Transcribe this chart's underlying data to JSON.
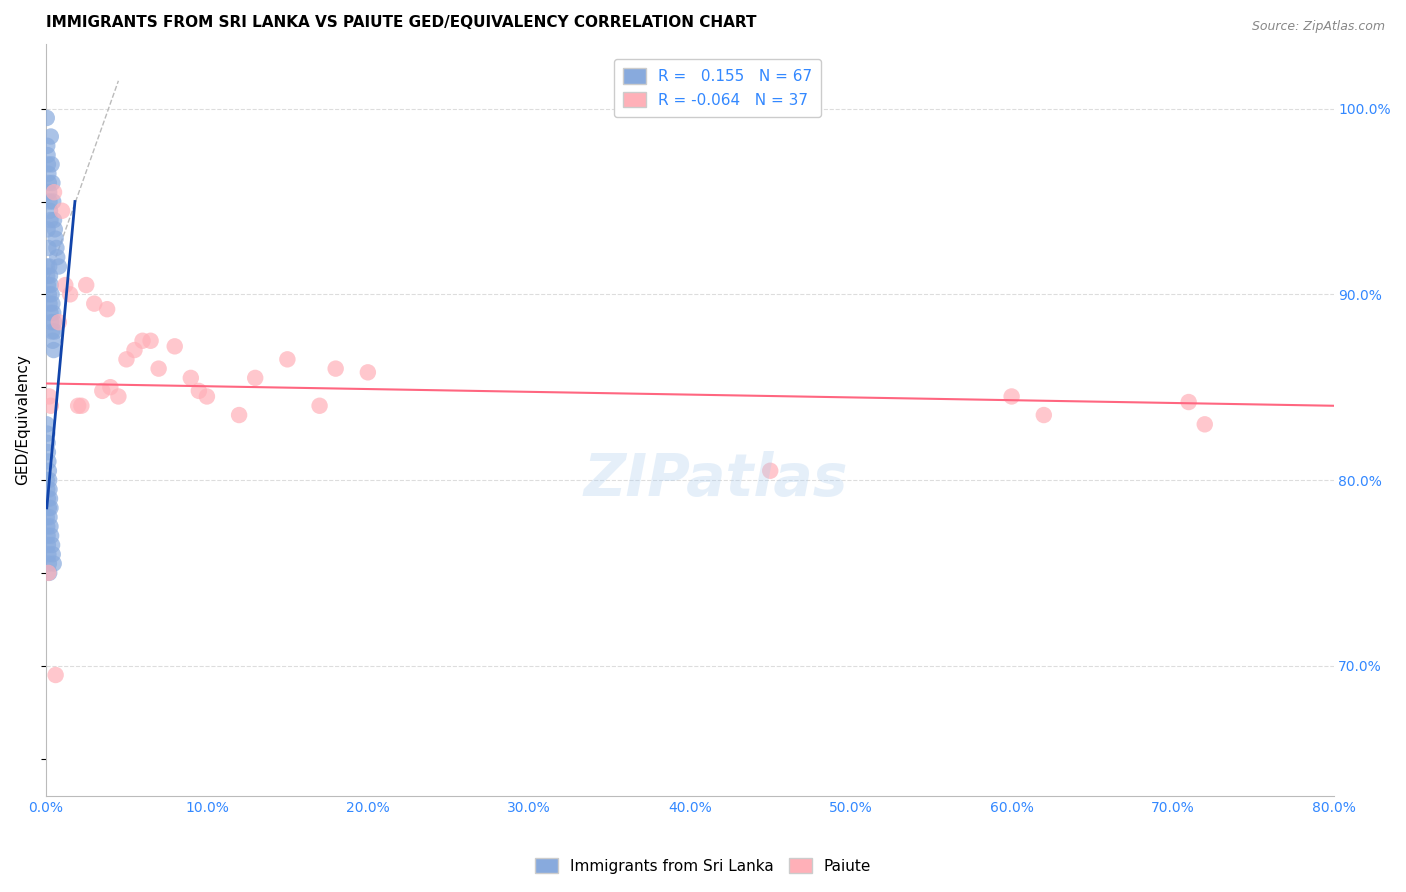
{
  "title": "IMMIGRANTS FROM SRI LANKA VS PAIUTE GED/EQUIVALENCY CORRELATION CHART",
  "source": "Source: ZipAtlas.com",
  "ylabel": "GED/Equivalency",
  "xlim": [
    0.0,
    80.0
  ],
  "ylim": [
    63.0,
    103.5
  ],
  "y_ticks_right": [
    70.0,
    80.0,
    90.0,
    100.0
  ],
  "y_tick_labels_right": [
    "70.0%",
    "80.0%",
    "90.0%",
    "100.0%"
  ],
  "x_ticks": [
    0.0,
    10.0,
    20.0,
    30.0,
    40.0,
    50.0,
    60.0,
    70.0,
    80.0
  ],
  "x_tick_labels": [
    "0.0%",
    "10.0%",
    "20.0%",
    "30.0%",
    "40.0%",
    "50.0%",
    "60.0%",
    "70.0%",
    "80.0%"
  ],
  "blue_color": "#88AADD",
  "pink_color": "#FFB0B8",
  "blue_line_color": "#1144AA",
  "pink_line_color": "#FF6680",
  "label_color": "#3388FF",
  "grid_color": "#DDDDDD",
  "legend_blue_label": "R =   0.155   N = 67",
  "legend_pink_label": "R = -0.064   N = 37",
  "legend_bottom_blue": "Immigrants from Sri Lanka",
  "legend_bottom_pink": "Paiute",
  "watermark": "ZIPatlas",
  "sl_x": [
    0.05,
    0.08,
    0.1,
    0.12,
    0.15,
    0.18,
    0.2,
    0.22,
    0.25,
    0.28,
    0.3,
    0.35,
    0.4,
    0.45,
    0.5,
    0.55,
    0.6,
    0.65,
    0.7,
    0.8,
    0.1,
    0.15,
    0.2,
    0.25,
    0.3,
    0.35,
    0.4,
    0.45,
    0.5,
    0.55,
    0.05,
    0.08,
    0.12,
    0.18,
    0.22,
    0.28,
    0.32,
    0.38,
    0.42,
    0.48,
    0.05,
    0.08,
    0.1,
    0.12,
    0.15,
    0.18,
    0.2,
    0.22,
    0.25,
    0.28,
    0.05,
    0.08,
    0.12,
    0.18,
    0.22,
    0.28,
    0.32,
    0.38,
    0.42,
    0.48,
    0.05,
    0.08,
    0.1,
    0.12,
    0.15,
    0.18,
    0.2
  ],
  "sl_y": [
    99.5,
    98.0,
    97.5,
    97.0,
    96.5,
    96.0,
    95.5,
    95.0,
    94.5,
    94.0,
    98.5,
    97.0,
    96.0,
    95.0,
    94.0,
    93.5,
    93.0,
    92.5,
    92.0,
    91.5,
    93.5,
    92.5,
    91.5,
    91.0,
    90.5,
    90.0,
    89.5,
    89.0,
    88.5,
    88.0,
    91.5,
    91.0,
    90.5,
    90.0,
    89.5,
    89.0,
    88.5,
    88.0,
    87.5,
    87.0,
    83.0,
    82.5,
    82.0,
    81.5,
    81.0,
    80.5,
    80.0,
    79.5,
    79.0,
    78.5,
    80.0,
    79.5,
    79.0,
    78.5,
    78.0,
    77.5,
    77.0,
    76.5,
    76.0,
    75.5,
    78.0,
    77.5,
    77.0,
    76.5,
    76.0,
    75.5,
    75.0
  ],
  "p_x": [
    0.2,
    0.5,
    1.0,
    1.5,
    2.0,
    2.5,
    3.0,
    3.5,
    4.0,
    4.5,
    5.0,
    5.5,
    6.0,
    7.0,
    8.0,
    9.0,
    10.0,
    12.0,
    15.0,
    18.0,
    20.0,
    0.3,
    0.8,
    1.2,
    2.2,
    3.8,
    6.5,
    9.5,
    13.0,
    17.0,
    45.0,
    60.0,
    62.0,
    71.0,
    72.0,
    0.15,
    0.6
  ],
  "p_y": [
    84.5,
    95.5,
    94.5,
    90.0,
    84.0,
    90.5,
    89.5,
    84.8,
    85.0,
    84.5,
    86.5,
    87.0,
    87.5,
    86.0,
    87.2,
    85.5,
    84.5,
    83.5,
    86.5,
    86.0,
    85.8,
    84.0,
    88.5,
    90.5,
    84.0,
    89.2,
    87.5,
    84.8,
    85.5,
    84.0,
    80.5,
    84.5,
    83.5,
    84.2,
    83.0,
    75.0,
    69.5
  ],
  "pink_line_x0": 0.0,
  "pink_line_y0": 85.2,
  "pink_line_x1": 80.0,
  "pink_line_y1": 84.0,
  "blue_line_x0": 0.05,
  "blue_line_y0": 78.5,
  "blue_line_x1": 1.8,
  "blue_line_y1": 95.0,
  "diag_x0": 0.0,
  "diag_y0": 90.5,
  "diag_x1": 4.5,
  "diag_y1": 101.5
}
